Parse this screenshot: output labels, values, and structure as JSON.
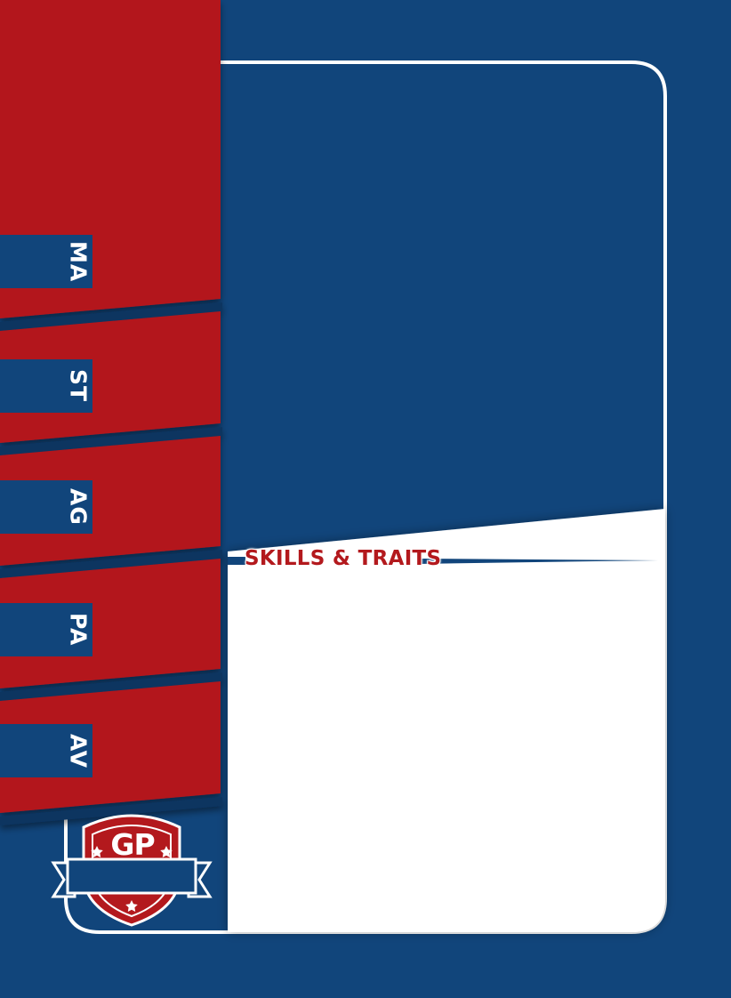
{
  "stats": [
    {
      "key": "ma",
      "label": "MA"
    },
    {
      "key": "st",
      "label": "ST"
    },
    {
      "key": "ag",
      "label": "AG"
    },
    {
      "key": "pa",
      "label": "PA"
    },
    {
      "key": "av",
      "label": "AV"
    }
  ],
  "skills_heading": "SKILLS & TRAITS",
  "badge": {
    "text": "GP"
  },
  "colors": {
    "background": "#11457b",
    "red": "#b3191d",
    "white": "#ffffff",
    "dark_blue": "#0b3461"
  },
  "icons": [
    "star-icon",
    "shield-icon",
    "ribbon-banner"
  ]
}
